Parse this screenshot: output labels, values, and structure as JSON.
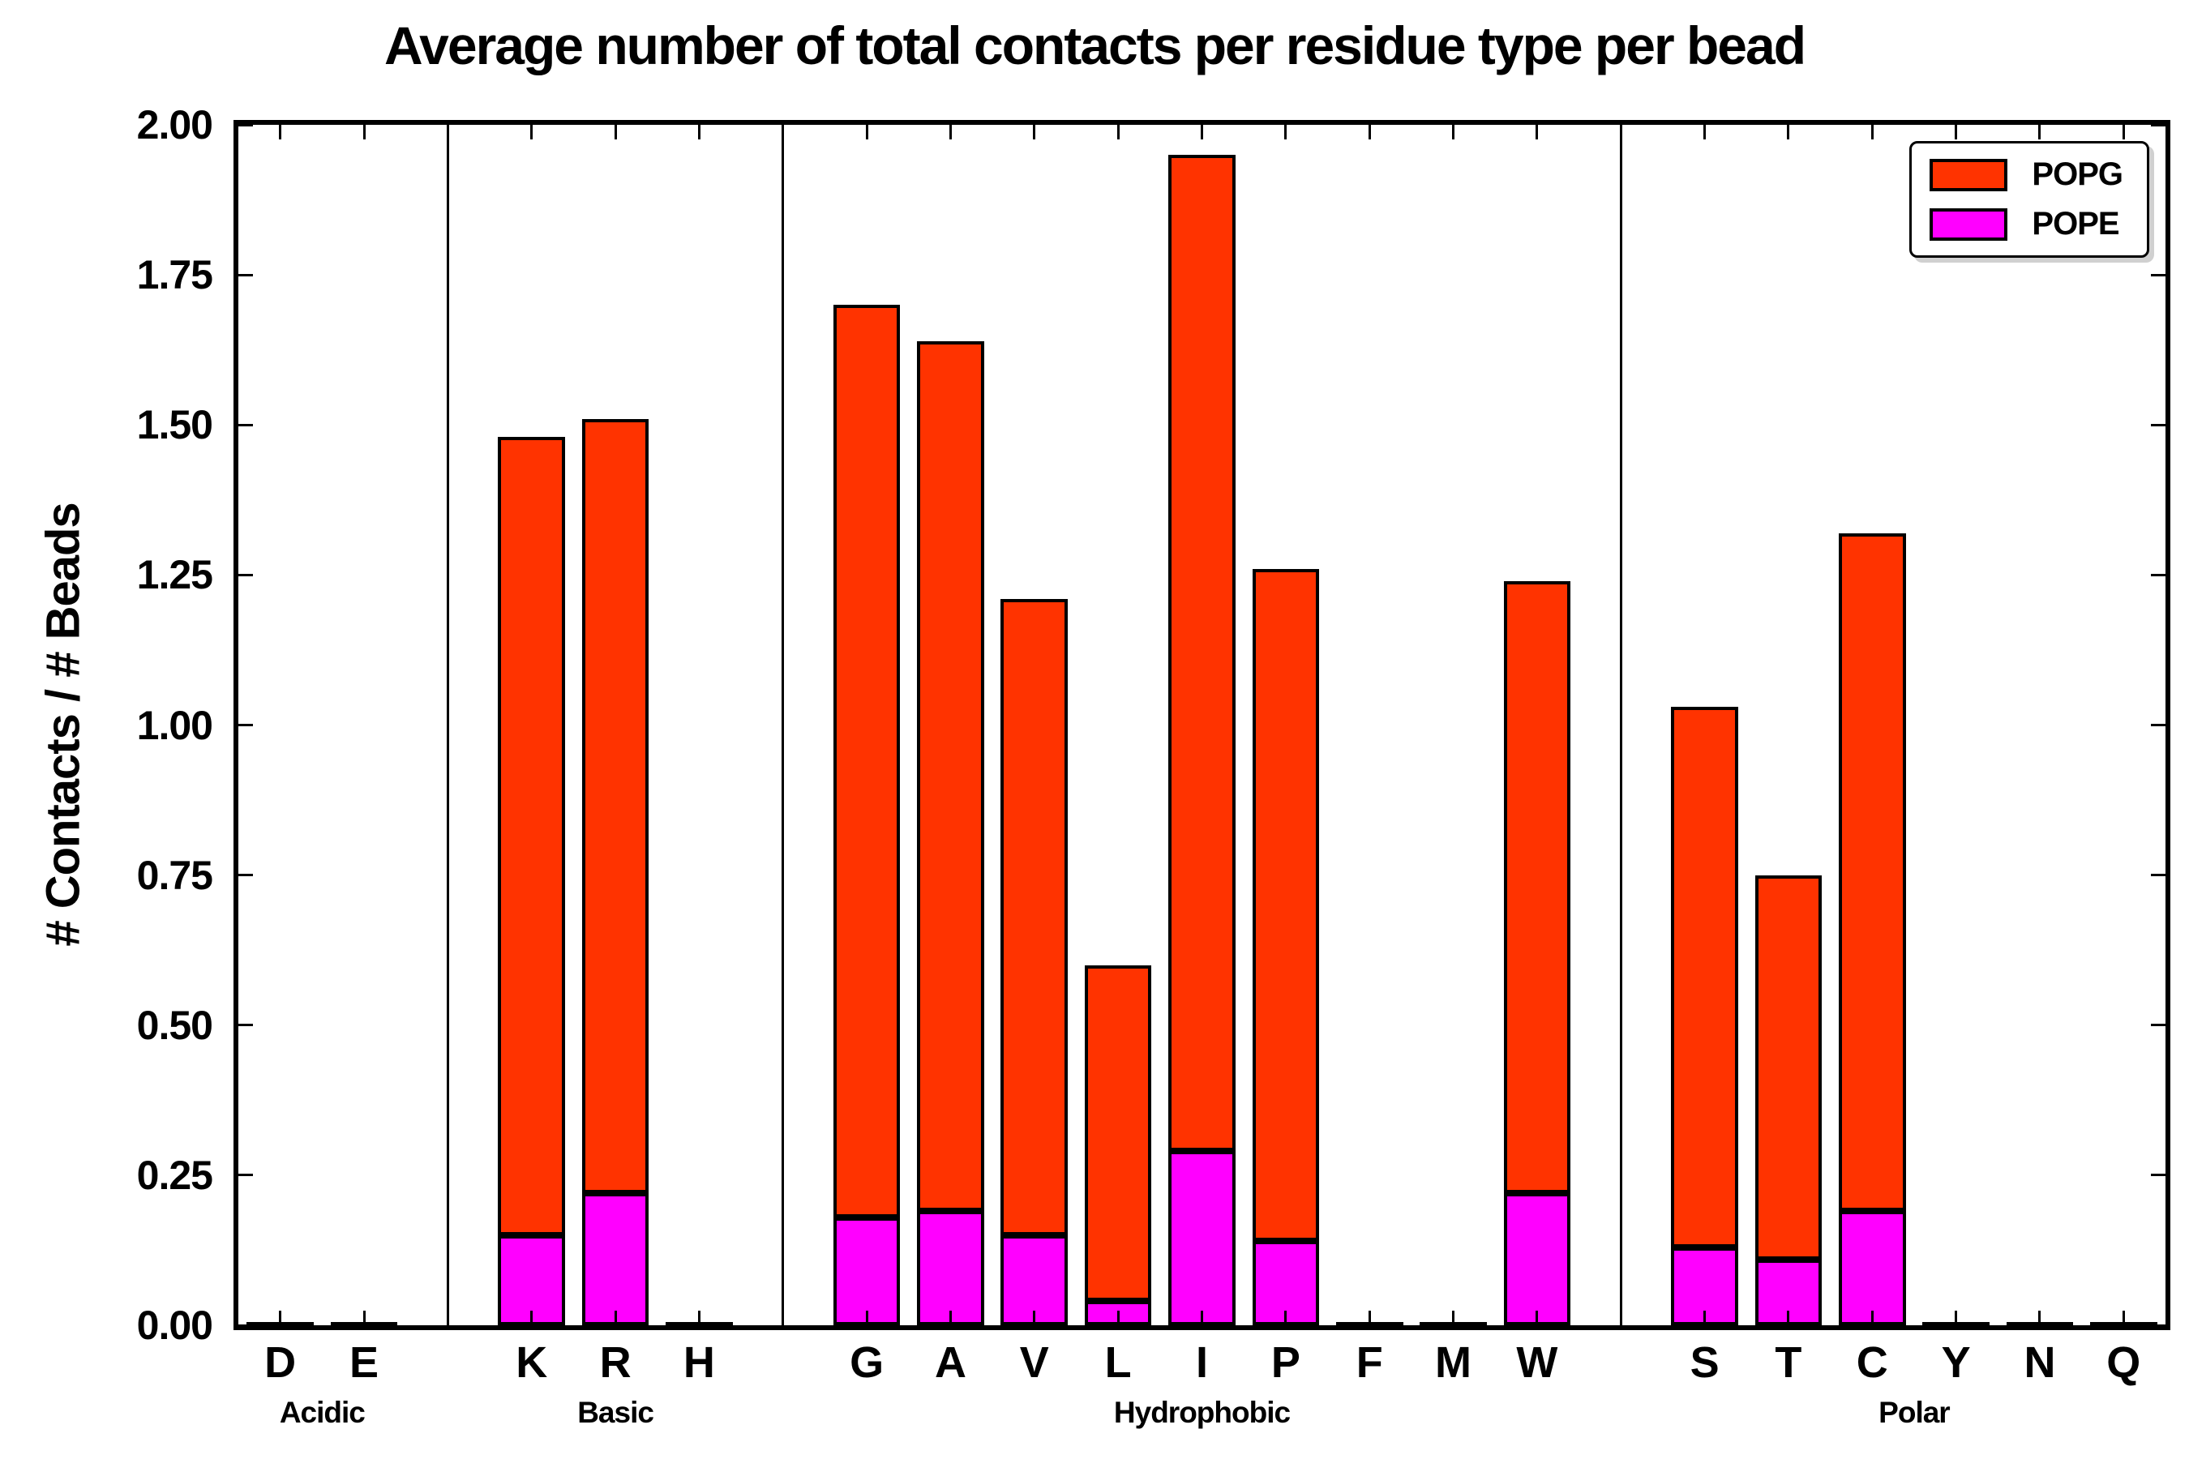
{
  "title": "Average number of total contacts per residue type per bead",
  "ylabel": "# Contacts / # Beads",
  "legend": {
    "items": [
      {
        "label": "POPG",
        "color": "#ff3300"
      },
      {
        "label": "POPE",
        "color": "#ff00ff"
      }
    ]
  },
  "chart_data": {
    "type": "bar",
    "stacked": true,
    "title": "Average number of total contacts per residue type per bead",
    "xlabel": "",
    "ylabel": "# Contacts / # Beads",
    "categories": [
      "D",
      "E",
      "K",
      "R",
      "H",
      "G",
      "A",
      "V",
      "L",
      "I",
      "P",
      "F",
      "M",
      "W",
      "S",
      "T",
      "C",
      "Y",
      "N",
      "Q"
    ],
    "groups": [
      {
        "label": "Acidic",
        "start": 0,
        "end": 1
      },
      {
        "label": "Basic",
        "start": 2,
        "end": 4
      },
      {
        "label": "Hydrophobic",
        "start": 5,
        "end": 13
      },
      {
        "label": "Polar",
        "start": 14,
        "end": 19
      }
    ],
    "series": [
      {
        "name": "POPE",
        "color": "#ff00ff",
        "values": [
          0,
          0,
          0.15,
          0.22,
          0,
          0.18,
          0.19,
          0.15,
          0.04,
          0.29,
          0.14,
          0,
          0,
          0.22,
          0.13,
          0.11,
          0.19,
          0,
          0,
          0
        ]
      },
      {
        "name": "POPG",
        "color": "#ff3300",
        "values": [
          0,
          0,
          1.33,
          1.29,
          0,
          1.52,
          1.45,
          1.06,
          0.56,
          1.66,
          1.12,
          0,
          0,
          1.02,
          0.9,
          0.64,
          1.13,
          0,
          0,
          0
        ]
      }
    ],
    "totals": [
      0,
      0,
      1.48,
      1.51,
      0,
      1.7,
      1.64,
      1.21,
      0.6,
      1.95,
      1.26,
      0,
      0,
      1.24,
      1.03,
      0.75,
      1.32,
      0,
      0,
      0
    ],
    "ylim": [
      0,
      2.0
    ],
    "ytick_step": 0.25,
    "ytick_labels": [
      "0.00",
      "0.25",
      "0.50",
      "0.75",
      "1.00",
      "1.25",
      "1.50",
      "1.75",
      "2.00"
    ],
    "grid": false,
    "legend_position": "upper right"
  }
}
